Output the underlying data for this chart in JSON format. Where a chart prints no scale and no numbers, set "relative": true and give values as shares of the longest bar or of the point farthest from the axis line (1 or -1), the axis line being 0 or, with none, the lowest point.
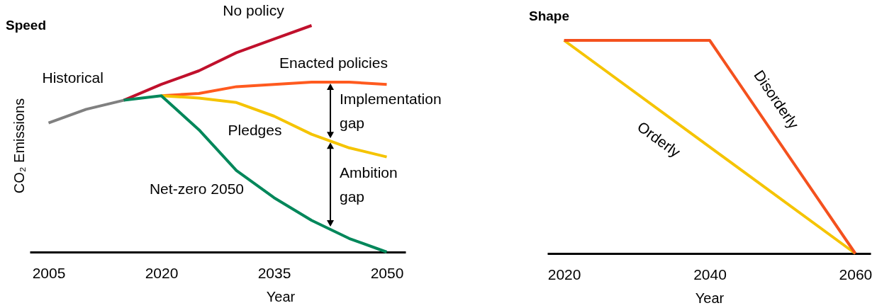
{
  "chart_data": [
    {
      "type": "line",
      "title": "Speed",
      "xlabel": "Year",
      "ylabel": "CO₂ Emissions",
      "relative": true,
      "xlim": [
        2002.5,
        2052.5
      ],
      "xticks": [
        2005,
        2020,
        2035,
        2050
      ],
      "series": [
        {
          "name": "Historical",
          "color": "#808080",
          "x": [
            2005,
            2010,
            2015
          ],
          "values": [
            0.57,
            0.63,
            0.67
          ]
        },
        {
          "name": "No policy",
          "color": "#c0102c",
          "x": [
            2015,
            2020,
            2025,
            2030,
            2035,
            2040
          ],
          "values": [
            0.67,
            0.74,
            0.8,
            0.88,
            0.94,
            1
          ]
        },
        {
          "name": "Enacted policies",
          "color": "#ff5a1f",
          "x": [
            2020,
            2025,
            2030,
            2035,
            2040,
            2045,
            2050
          ],
          "values": [
            0.69,
            0.7,
            0.73,
            0.74,
            0.75,
            0.75,
            0.74
          ]
        },
        {
          "name": "Pledges",
          "color": "#f5c400",
          "x": [
            2020,
            2025,
            2030,
            2035,
            2040,
            2045,
            2050
          ],
          "values": [
            0.69,
            0.68,
            0.66,
            0.6,
            0.52,
            0.46,
            0.42
          ]
        },
        {
          "name": "Net-zero 2050",
          "color": "#00875a",
          "x": [
            2015,
            2020,
            2025,
            2030,
            2035,
            2040,
            2045,
            2050
          ],
          "values": [
            0.67,
            0.69,
            0.54,
            0.36,
            0.24,
            0.14,
            0.06,
            0
          ]
        }
      ],
      "annotations": [
        "Implementation gap",
        "Ambition gap"
      ]
    },
    {
      "type": "line",
      "title": "Shape",
      "xlabel": "Year",
      "relative": true,
      "xlim": [
        2017.7,
        2062.1
      ],
      "xticks": [
        2020,
        2040,
        2060
      ],
      "series": [
        {
          "name": "Orderly",
          "color": "#f5c400",
          "x": [
            2020,
            2060
          ],
          "values": [
            1,
            0
          ]
        },
        {
          "name": "Disorderly",
          "color": "#f4511e",
          "x": [
            2020,
            2040,
            2060
          ],
          "values": [
            1,
            1,
            0
          ]
        }
      ]
    }
  ]
}
